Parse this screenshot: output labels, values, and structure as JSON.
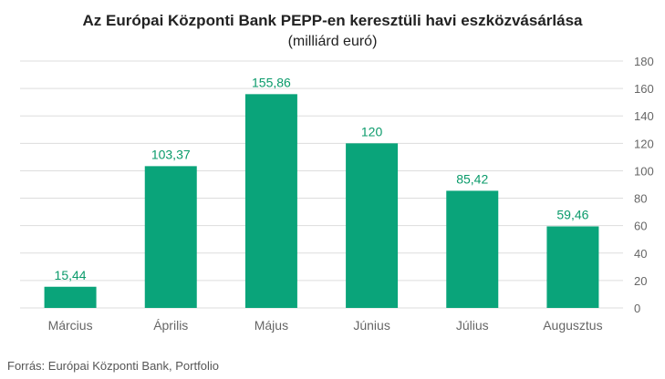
{
  "title": "Az Európai Központi Bank PEPP-en keresztüli havi eszközvásárlása",
  "subtitle": "(milliárd euró)",
  "source": "Forrás: Európai Központi Bank, Portfolio",
  "colors": {
    "bar": "#0aa47a",
    "label": "#0b9b6b",
    "grid": "#dddddd"
  },
  "chart_data": {
    "type": "bar",
    "title": "Az Európai Központi Bank PEPP-en keresztüli havi eszközvásárlása",
    "subtitle": "(milliárd euró)",
    "categories": [
      "Március",
      "Április",
      "Május",
      "Június",
      "Július",
      "Augusztus"
    ],
    "values": [
      15.44,
      103.37,
      155.86,
      120,
      85.42,
      59.46
    ],
    "value_labels": [
      "15,44",
      "103,37",
      "155,86",
      "120",
      "85,42",
      "59,46"
    ],
    "ylim": [
      0,
      180
    ],
    "yticks": [
      0,
      20,
      40,
      60,
      80,
      100,
      120,
      140,
      160,
      180
    ],
    "y_axis_side": "right",
    "grid": true,
    "xlabel": "",
    "ylabel": ""
  }
}
